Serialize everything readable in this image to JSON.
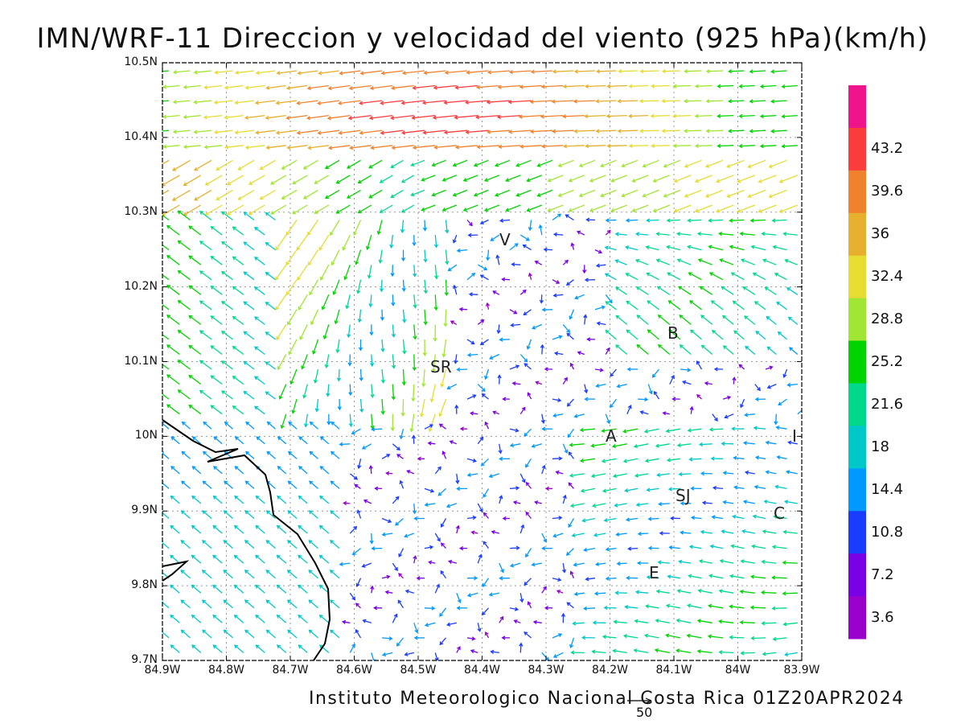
{
  "title": "IMN/WRF-11 Direccion y velocidad del viento (925 hPa)(km/h)",
  "footer": "Instituto Meteorologico Nacional Costa Rica 01Z20APR2024",
  "vector_scale_label": "50",
  "lat_labels": [
    "10.5N",
    "10.4N",
    "10.3N",
    "10.2N",
    "10.1N",
    "10N",
    "9.9N",
    "9.8N",
    "9.7N"
  ],
  "lon_labels": [
    "84.9W",
    "84.8W",
    "84.7W",
    "84.6W",
    "84.5W",
    "84.4W",
    "84.3W",
    "84.2W",
    "84.1W",
    "84W",
    "83.9W"
  ],
  "colorbar": {
    "labels": [
      "3.6",
      "7.2",
      "10.8",
      "14.4",
      "18",
      "21.6",
      "25.2",
      "28.8",
      "32.4",
      "36",
      "39.6",
      "43.2"
    ],
    "colors": [
      "#9900cc",
      "#7a00e6",
      "#1a3cff",
      "#0099ff",
      "#00c8c8",
      "#00d98c",
      "#00d400",
      "#a0e632",
      "#e6dc32",
      "#e6af2d",
      "#f0822d",
      "#fa3c3c",
      "#f0148c"
    ]
  },
  "cities": [
    {
      "label": "V"
    },
    {
      "label": "B"
    },
    {
      "label": "SR"
    },
    {
      "label": "A"
    },
    {
      "label": "I"
    },
    {
      "label": "SJ"
    },
    {
      "label": "C"
    },
    {
      "label": "E"
    }
  ]
}
